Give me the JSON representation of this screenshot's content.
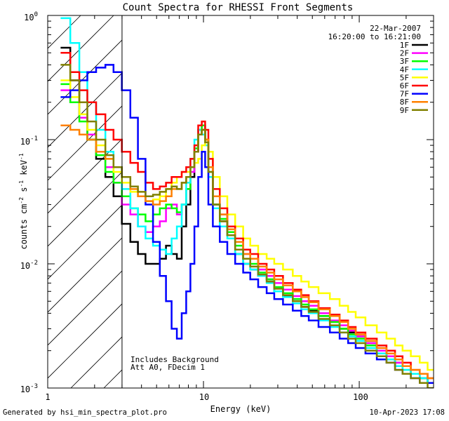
{
  "chart_data": {
    "type": "line",
    "title": "Count Spectra for RHESSI Front Segments",
    "xlabel": "Energy (keV)",
    "ylabel": "counts cm^-2 s^-1 keV^-1",
    "ylabel_parts": {
      "base": "counts cm",
      "e1": "-2",
      "mid": " s",
      "e2": "-1",
      "end": " keV",
      "e3": "-1"
    },
    "x_scale": "log",
    "y_scale": "log",
    "xlim": [
      1,
      300
    ],
    "ylim": [
      0.001,
      1
    ],
    "x_tick_labels": [
      {
        "value": 1,
        "label": "1"
      },
      {
        "value": 10,
        "label": "10"
      },
      {
        "value": 100,
        "label": "100"
      }
    ],
    "y_tick_labels": [
      {
        "value": 1,
        "base": "10",
        "exp": "0"
      },
      {
        "value": 0.1,
        "base": "10",
        "exp": "-1"
      },
      {
        "value": 0.01,
        "base": "10",
        "exp": "-2"
      },
      {
        "value": 0.001,
        "base": "10",
        "exp": "-3"
      }
    ],
    "hatched_region": {
      "x_min": 1,
      "x_max": 3.0
    },
    "annotations": {
      "date": "22-Mar-2007",
      "time_range": "16:20:00 to 16:21:00",
      "note_line1": "Includes Background",
      "note_line2": "Att A0, FDecim 1"
    },
    "legend_position": "top-right",
    "series": [
      {
        "name": "1F",
        "color": "#000000",
        "x": [
          1.3,
          1.5,
          1.7,
          1.9,
          2.2,
          2.5,
          2.8,
          3.2,
          3.6,
          4.0,
          4.5,
          5.0,
          5.5,
          6.0,
          6.5,
          7.0,
          7.5,
          8.0,
          8.5,
          9.0,
          9.5,
          10.0,
          10.5,
          11.0,
          12.0,
          13.5,
          15.0,
          17.0,
          19.0,
          21.0,
          24.0,
          27.0,
          30.0,
          35.0,
          40.0,
          45.0,
          50.0,
          60.0,
          70.0,
          80.0,
          90.0,
          100.0,
          120.0,
          140.0,
          160.0,
          180.0,
          200.0,
          230.0,
          260.0,
          290.0
        ],
        "y": [
          0.55,
          0.3,
          0.15,
          0.1,
          0.07,
          0.05,
          0.035,
          0.021,
          0.015,
          0.012,
          0.01,
          0.01,
          0.011,
          0.014,
          0.012,
          0.011,
          0.02,
          0.03,
          0.05,
          0.08,
          0.11,
          0.12,
          0.1,
          0.06,
          0.03,
          0.022,
          0.017,
          0.012,
          0.01,
          0.009,
          0.008,
          0.0075,
          0.006,
          0.0055,
          0.005,
          0.0045,
          0.0042,
          0.0038,
          0.0034,
          0.003,
          0.0028,
          0.0026,
          0.0023,
          0.002,
          0.0018,
          0.0016,
          0.0015,
          0.0013,
          0.0012,
          0.0011
        ]
      },
      {
        "name": "2F",
        "color": "#ff00ff",
        "x": [
          1.3,
          1.5,
          1.7,
          1.9,
          2.2,
          2.5,
          2.8,
          3.2,
          3.6,
          4.0,
          4.5,
          5.0,
          5.5,
          6.0,
          6.5,
          7.0,
          7.5,
          8.0,
          8.5,
          9.0,
          9.5,
          10.0,
          10.5,
          11.0,
          12.0,
          13.5,
          15.0,
          17.0,
          19.0,
          21.0,
          24.0,
          27.0,
          30.0,
          35.0,
          40.0,
          45.0,
          50.0,
          60.0,
          70.0,
          80.0,
          90.0,
          100.0,
          120.0,
          140.0,
          160.0,
          180.0,
          200.0,
          230.0,
          260.0,
          290.0
        ],
        "y": [
          0.25,
          0.2,
          0.15,
          0.11,
          0.08,
          0.06,
          0.045,
          0.03,
          0.025,
          0.02,
          0.018,
          0.02,
          0.022,
          0.028,
          0.03,
          0.025,
          0.03,
          0.04,
          0.055,
          0.08,
          0.12,
          0.13,
          0.1,
          0.06,
          0.035,
          0.025,
          0.02,
          0.015,
          0.012,
          0.011,
          0.009,
          0.008,
          0.007,
          0.0062,
          0.0055,
          0.005,
          0.0046,
          0.004,
          0.0035,
          0.0032,
          0.0029,
          0.0026,
          0.0023,
          0.002,
          0.0018,
          0.0016,
          0.0015,
          0.0013,
          0.0012,
          0.0011
        ]
      },
      {
        "name": "3F",
        "color": "#00ff00",
        "x": [
          1.3,
          1.5,
          1.7,
          1.9,
          2.2,
          2.5,
          2.8,
          3.2,
          3.6,
          4.0,
          4.5,
          5.0,
          5.5,
          6.0,
          6.5,
          7.0,
          7.5,
          8.0,
          8.5,
          9.0,
          9.5,
          10.0,
          10.5,
          11.0,
          12.0,
          13.5,
          15.0,
          17.0,
          19.0,
          21.0,
          24.0,
          27.0,
          30.0,
          35.0,
          40.0,
          45.0,
          50.0,
          60.0,
          70.0,
          80.0,
          90.0,
          100.0,
          120.0,
          140.0,
          160.0,
          180.0,
          200.0,
          230.0,
          260.0,
          290.0
        ],
        "y": [
          0.28,
          0.2,
          0.14,
          0.1,
          0.075,
          0.055,
          0.045,
          0.035,
          0.028,
          0.025,
          0.022,
          0.025,
          0.028,
          0.03,
          0.028,
          0.026,
          0.03,
          0.04,
          0.06,
          0.085,
          0.12,
          0.13,
          0.1,
          0.055,
          0.03,
          0.023,
          0.018,
          0.014,
          0.011,
          0.01,
          0.0085,
          0.0075,
          0.0065,
          0.0058,
          0.0052,
          0.0047,
          0.0043,
          0.0038,
          0.0034,
          0.003,
          0.0027,
          0.0025,
          0.0022,
          0.0019,
          0.0017,
          0.0015,
          0.0014,
          0.0013,
          0.0012,
          0.0011
        ]
      },
      {
        "name": "4F",
        "color": "#00ffff",
        "x": [
          1.3,
          1.5,
          1.7,
          1.9,
          2.2,
          2.5,
          2.8,
          3.2,
          3.6,
          4.0,
          4.5,
          5.0,
          5.5,
          6.0,
          6.5,
          7.0,
          7.5,
          8.0,
          8.5,
          9.0,
          9.5,
          10.0,
          10.5,
          11.0,
          12.0,
          13.5,
          15.0,
          17.0,
          19.0,
          21.0,
          24.0,
          27.0,
          30.0,
          35.0,
          40.0,
          45.0,
          50.0,
          60.0,
          70.0,
          80.0,
          90.0,
          100.0,
          120.0,
          140.0,
          160.0,
          180.0,
          200.0,
          230.0,
          260.0,
          290.0
        ],
        "y": [
          0.95,
          0.6,
          0.35,
          0.2,
          0.12,
          0.08,
          0.06,
          0.04,
          0.028,
          0.02,
          0.016,
          0.014,
          0.013,
          0.012,
          0.016,
          0.02,
          0.03,
          0.045,
          0.07,
          0.1,
          0.12,
          0.11,
          0.09,
          0.05,
          0.028,
          0.02,
          0.016,
          0.012,
          0.01,
          0.009,
          0.008,
          0.007,
          0.006,
          0.0054,
          0.0048,
          0.0043,
          0.004,
          0.0035,
          0.0031,
          0.0028,
          0.0026,
          0.0024,
          0.0021,
          0.0019,
          0.0017,
          0.0015,
          0.0014,
          0.0013,
          0.0012,
          0.0011
        ]
      },
      {
        "name": "5F",
        "color": "#ffff00",
        "x": [
          1.3,
          1.5,
          1.7,
          1.9,
          2.2,
          2.5,
          2.8,
          3.2,
          3.6,
          4.0,
          4.5,
          5.0,
          5.5,
          6.0,
          6.5,
          7.0,
          7.5,
          8.0,
          8.5,
          9.0,
          9.5,
          10.0,
          10.5,
          11.0,
          12.0,
          13.5,
          15.0,
          17.0,
          19.0,
          21.0,
          24.0,
          27.0,
          30.0,
          35.0,
          40.0,
          45.0,
          50.0,
          60.0,
          70.0,
          80.0,
          90.0,
          100.0,
          120.0,
          140.0,
          160.0,
          180.0,
          200.0,
          230.0,
          260.0,
          290.0
        ],
        "y": [
          0.3,
          0.22,
          0.16,
          0.12,
          0.09,
          0.07,
          0.055,
          0.045,
          0.038,
          0.035,
          0.032,
          0.033,
          0.035,
          0.04,
          0.045,
          0.05,
          0.055,
          0.055,
          0.06,
          0.065,
          0.07,
          0.09,
          0.1,
          0.08,
          0.05,
          0.035,
          0.025,
          0.02,
          0.016,
          0.014,
          0.012,
          0.011,
          0.01,
          0.009,
          0.008,
          0.0072,
          0.0065,
          0.0058,
          0.0052,
          0.0046,
          0.0041,
          0.0037,
          0.0032,
          0.0028,
          0.0025,
          0.0022,
          0.002,
          0.0018,
          0.0016,
          0.0014
        ]
      },
      {
        "name": "6F",
        "color": "#ff0000",
        "x": [
          1.3,
          1.5,
          1.7,
          1.9,
          2.2,
          2.5,
          2.8,
          3.2,
          3.6,
          4.0,
          4.5,
          5.0,
          5.5,
          6.0,
          6.5,
          7.0,
          7.5,
          8.0,
          8.5,
          9.0,
          9.5,
          10.0,
          10.5,
          11.0,
          12.0,
          13.5,
          15.0,
          17.0,
          19.0,
          21.0,
          24.0,
          27.0,
          30.0,
          35.0,
          40.0,
          45.0,
          50.0,
          60.0,
          70.0,
          80.0,
          90.0,
          100.0,
          120.0,
          140.0,
          160.0,
          180.0,
          200.0,
          230.0,
          260.0,
          290.0
        ],
        "y": [
          0.5,
          0.35,
          0.25,
          0.2,
          0.16,
          0.12,
          0.1,
          0.08,
          0.065,
          0.055,
          0.045,
          0.04,
          0.042,
          0.045,
          0.05,
          0.05,
          0.055,
          0.06,
          0.07,
          0.09,
          0.13,
          0.14,
          0.12,
          0.07,
          0.04,
          0.028,
          0.02,
          0.016,
          0.013,
          0.012,
          0.01,
          0.009,
          0.008,
          0.007,
          0.0062,
          0.0056,
          0.005,
          0.0044,
          0.0039,
          0.0035,
          0.0031,
          0.0028,
          0.0025,
          0.0022,
          0.002,
          0.0018,
          0.0016,
          0.0014,
          0.0013,
          0.0012
        ]
      },
      {
        "name": "7F",
        "color": "#0000ff",
        "x": [
          1.3,
          1.5,
          1.7,
          1.9,
          2.2,
          2.5,
          2.8,
          3.2,
          3.6,
          4.0,
          4.5,
          5.0,
          5.5,
          6.0,
          6.5,
          7.0,
          7.5,
          8.0,
          8.5,
          9.0,
          9.5,
          10.0,
          10.5,
          11.0,
          12.0,
          13.5,
          15.0,
          17.0,
          19.0,
          21.0,
          24.0,
          27.0,
          30.0,
          35.0,
          40.0,
          45.0,
          50.0,
          60.0,
          70.0,
          80.0,
          90.0,
          100.0,
          120.0,
          140.0,
          160.0,
          180.0,
          200.0,
          230.0,
          260.0,
          290.0
        ],
        "y": [
          0.22,
          0.25,
          0.3,
          0.35,
          0.38,
          0.4,
          0.35,
          0.25,
          0.15,
          0.07,
          0.03,
          0.015,
          0.008,
          0.005,
          0.003,
          0.0025,
          0.004,
          0.006,
          0.01,
          0.02,
          0.05,
          0.08,
          0.06,
          0.03,
          0.02,
          0.015,
          0.012,
          0.01,
          0.0085,
          0.0075,
          0.0065,
          0.0058,
          0.0052,
          0.0047,
          0.0042,
          0.0038,
          0.0035,
          0.0031,
          0.0028,
          0.0025,
          0.0023,
          0.0021,
          0.0019,
          0.0017,
          0.0016,
          0.0014,
          0.0013,
          0.0012,
          0.0011,
          0.0011
        ]
      },
      {
        "name": "8F",
        "color": "#ff8000",
        "x": [
          1.3,
          1.5,
          1.7,
          1.9,
          2.2,
          2.5,
          2.8,
          3.2,
          3.6,
          4.0,
          4.5,
          5.0,
          5.5,
          6.0,
          6.5,
          7.0,
          7.5,
          8.0,
          8.5,
          9.0,
          9.5,
          10.0,
          10.5,
          11.0,
          12.0,
          13.5,
          15.0,
          17.0,
          19.0,
          21.0,
          24.0,
          27.0,
          30.0,
          35.0,
          40.0,
          45.0,
          50.0,
          60.0,
          70.0,
          80.0,
          90.0,
          100.0,
          120.0,
          140.0,
          160.0,
          180.0,
          200.0,
          230.0,
          260.0,
          290.0
        ],
        "y": [
          0.13,
          0.12,
          0.11,
          0.1,
          0.08,
          0.07,
          0.06,
          0.05,
          0.04,
          0.035,
          0.032,
          0.03,
          0.032,
          0.035,
          0.04,
          0.04,
          0.045,
          0.05,
          0.06,
          0.08,
          0.11,
          0.12,
          0.1,
          0.06,
          0.035,
          0.025,
          0.019,
          0.015,
          0.012,
          0.011,
          0.0095,
          0.0085,
          0.0075,
          0.0067,
          0.006,
          0.0054,
          0.0049,
          0.0043,
          0.0038,
          0.0034,
          0.003,
          0.0027,
          0.0024,
          0.0021,
          0.0019,
          0.0017,
          0.0015,
          0.0014,
          0.0013,
          0.0012
        ]
      },
      {
        "name": "9F",
        "color": "#808000",
        "x": [
          1.3,
          1.5,
          1.7,
          1.9,
          2.2,
          2.5,
          2.8,
          3.2,
          3.6,
          4.0,
          4.5,
          5.0,
          5.5,
          6.0,
          6.5,
          7.0,
          7.5,
          8.0,
          8.5,
          9.0,
          9.5,
          10.0,
          10.5,
          11.0,
          12.0,
          13.5,
          15.0,
          17.0,
          19.0,
          21.0,
          24.0,
          27.0,
          30.0,
          35.0,
          40.0,
          45.0,
          50.0,
          60.0,
          70.0,
          80.0,
          90.0,
          100.0,
          120.0,
          140.0,
          160.0,
          180.0,
          200.0,
          230.0,
          260.0,
          290.0
        ],
        "y": [
          0.4,
          0.3,
          0.2,
          0.14,
          0.1,
          0.075,
          0.06,
          0.05,
          0.042,
          0.038,
          0.035,
          0.036,
          0.038,
          0.04,
          0.042,
          0.04,
          0.045,
          0.05,
          0.06,
          0.08,
          0.11,
          0.12,
          0.095,
          0.055,
          0.03,
          0.022,
          0.017,
          0.013,
          0.011,
          0.0095,
          0.0082,
          0.0072,
          0.0063,
          0.0056,
          0.005,
          0.0045,
          0.0041,
          0.0036,
          0.0032,
          0.0028,
          0.0025,
          0.0023,
          0.002,
          0.0018,
          0.0016,
          0.0014,
          0.0013,
          0.0012,
          0.0011,
          0.001
        ]
      }
    ]
  },
  "footer": {
    "generated_by": "Generated by hsi_min_spectra_plot.pro",
    "timestamp": "10-Apr-2023 17:08"
  }
}
